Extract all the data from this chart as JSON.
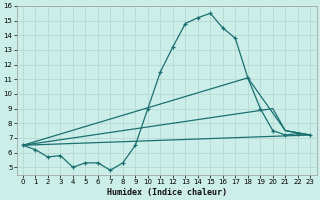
{
  "xlabel": "Humidex (Indice chaleur)",
  "background_color": "#cceee8",
  "grid_color": "#b8d8d4",
  "line_color": "#1a7070",
  "xlim": [
    -0.5,
    23.5
  ],
  "ylim": [
    4.5,
    16
  ],
  "xticks": [
    0,
    1,
    2,
    3,
    4,
    5,
    6,
    7,
    8,
    9,
    10,
    11,
    12,
    13,
    14,
    15,
    16,
    17,
    18,
    19,
    20,
    21,
    22,
    23
  ],
  "yticks": [
    5,
    6,
    7,
    8,
    9,
    10,
    11,
    12,
    13,
    14,
    15,
    16
  ],
  "series_main": {
    "x": [
      0,
      1,
      2,
      3,
      4,
      5,
      6,
      7,
      8,
      9,
      10,
      11,
      12,
      13,
      14,
      15,
      16,
      17,
      18,
      19,
      20,
      21,
      22,
      23
    ],
    "y": [
      6.5,
      6.2,
      5.7,
      5.8,
      5.0,
      5.3,
      5.3,
      4.8,
      5.3,
      6.5,
      9.0,
      11.5,
      13.2,
      14.8,
      15.2,
      15.5,
      14.5,
      13.8,
      11.1,
      9.0,
      7.5,
      7.2,
      7.3,
      7.2
    ]
  },
  "series_lines": [
    {
      "x": [
        0,
        23
      ],
      "y": [
        6.5,
        7.2
      ]
    },
    {
      "x": [
        0,
        20,
        21,
        23
      ],
      "y": [
        6.5,
        9.0,
        7.5,
        7.2
      ]
    },
    {
      "x": [
        0,
        18,
        21,
        23
      ],
      "y": [
        6.5,
        11.1,
        7.5,
        7.2
      ]
    }
  ]
}
